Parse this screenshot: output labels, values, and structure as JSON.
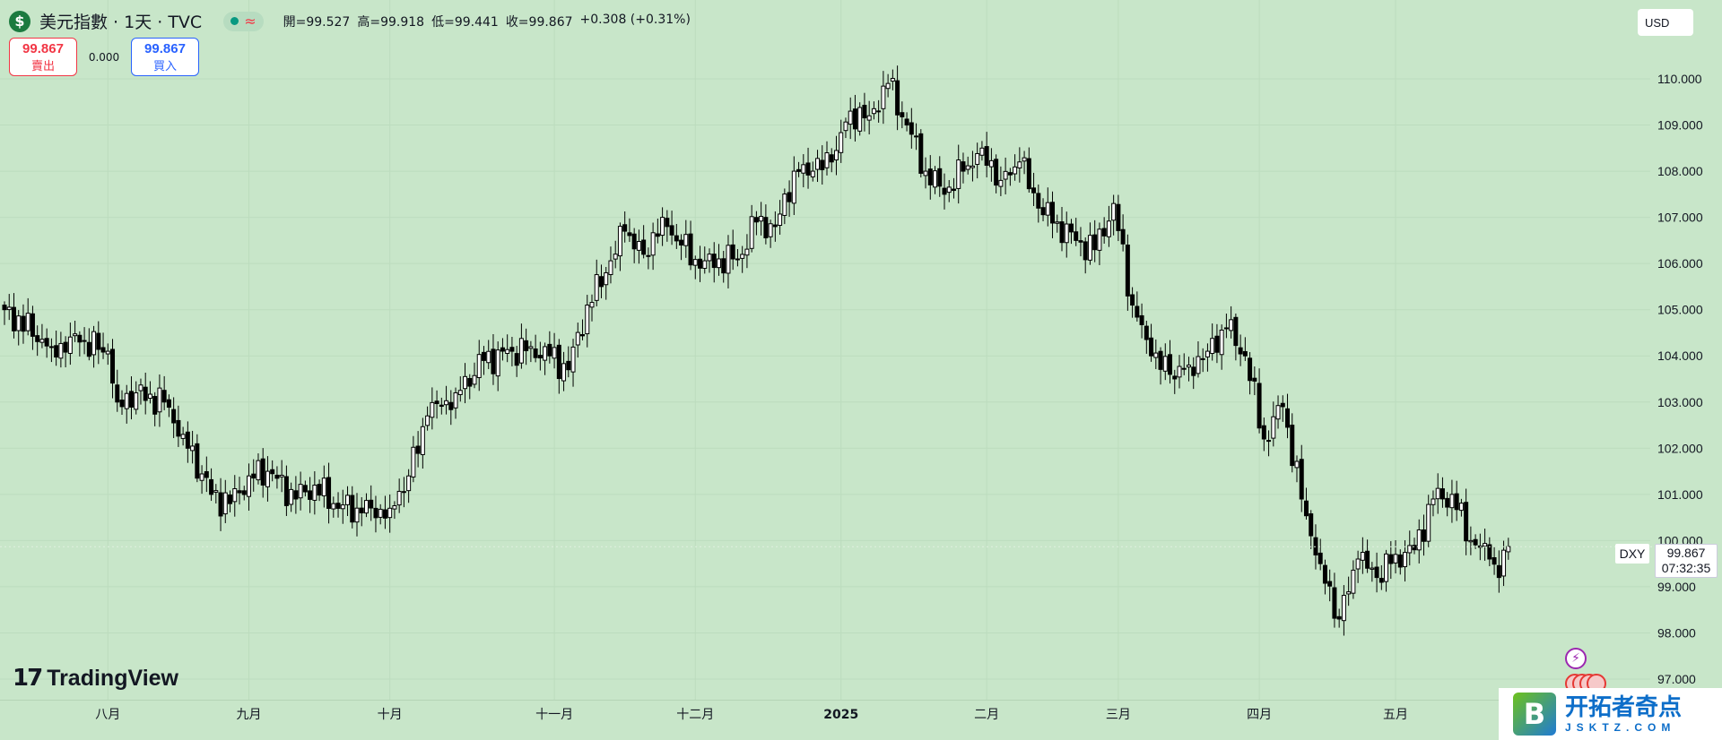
{
  "header": {
    "title": "美元指數 · 1天 · TVC",
    "coin_icon": "dollar-icon",
    "status_approx": "≈",
    "ohlc": [
      {
        "label": "開=",
        "value": "99.527"
      },
      {
        "label": "高=",
        "value": "99.918"
      },
      {
        "label": "低=",
        "value": "99.441"
      },
      {
        "label": "收=",
        "value": "99.867"
      }
    ],
    "change": "+0.308 (+0.31%)"
  },
  "trade": {
    "sell_price": "99.867",
    "sell_label": "賣出",
    "spread": "0.000",
    "buy_price": "99.867",
    "buy_label": "買入"
  },
  "currency": "USD",
  "last_price": {
    "symbol": "DXY",
    "price": "99.867",
    "countdown": "07:32:35"
  },
  "logo": {
    "mark": "17",
    "word": "TradingView"
  },
  "watermark": {
    "logo_letter": "B",
    "title": "开拓者奇点",
    "subtitle": "JSKTZ.COM"
  },
  "colors": {
    "background": "#c8e6c9",
    "candle_up": "#ffffff",
    "candle_down": "#000000",
    "sell": "#f23645",
    "buy": "#2962ff"
  },
  "chart_data": {
    "type": "candlestick",
    "symbol": "DXY",
    "interval": "1天",
    "y_ticks": [
      "97.000",
      "98.000",
      "99.000",
      "100.000",
      "101.000",
      "102.000",
      "103.000",
      "104.000",
      "105.000",
      "106.000",
      "107.000",
      "108.000",
      "109.000",
      "110.000"
    ],
    "ylim": [
      97,
      110.8
    ],
    "x_ticks": [
      {
        "label": "八月",
        "index": 22
      },
      {
        "label": "九月",
        "index": 52
      },
      {
        "label": "十月",
        "index": 82
      },
      {
        "label": "十一月",
        "index": 117
      },
      {
        "label": "十二月",
        "index": 147
      },
      {
        "label": "2025",
        "index": 178,
        "bold": true
      },
      {
        "label": "二月",
        "index": 209
      },
      {
        "label": "三月",
        "index": 237
      },
      {
        "label": "四月",
        "index": 267
      },
      {
        "label": "五月",
        "index": 296
      }
    ],
    "anchor_close": [
      [
        0,
        105.0
      ],
      [
        10,
        104.2
      ],
      [
        16,
        104.3
      ],
      [
        22,
        104.1
      ],
      [
        24,
        103.0
      ],
      [
        28,
        103.2
      ],
      [
        34,
        103.0
      ],
      [
        38,
        102.3
      ],
      [
        44,
        101.0
      ],
      [
        48,
        100.8
      ],
      [
        52,
        101.4
      ],
      [
        56,
        101.5
      ],
      [
        62,
        100.9
      ],
      [
        66,
        101.2
      ],
      [
        70,
        100.8
      ],
      [
        76,
        100.6
      ],
      [
        82,
        100.7
      ],
      [
        86,
        101.4
      ],
      [
        90,
        102.7
      ],
      [
        96,
        103.2
      ],
      [
        102,
        103.9
      ],
      [
        108,
        104.1
      ],
      [
        112,
        104.2
      ],
      [
        116,
        104.0
      ],
      [
        120,
        103.7
      ],
      [
        124,
        105.1
      ],
      [
        128,
        105.8
      ],
      [
        132,
        106.7
      ],
      [
        136,
        106.2
      ],
      [
        140,
        107.0
      ],
      [
        144,
        106.4
      ],
      [
        148,
        105.9
      ],
      [
        152,
        106.1
      ],
      [
        156,
        106.1
      ],
      [
        160,
        106.9
      ],
      [
        164,
        106.8
      ],
      [
        168,
        108.0
      ],
      [
        172,
        108.0
      ],
      [
        176,
        108.2
      ],
      [
        180,
        109.3
      ],
      [
        184,
        109.2
      ],
      [
        188,
        109.9
      ],
      [
        192,
        109.0
      ],
      [
        196,
        108.0
      ],
      [
        200,
        107.5
      ],
      [
        204,
        108.0
      ],
      [
        208,
        108.5
      ],
      [
        212,
        107.8
      ],
      [
        216,
        108.2
      ],
      [
        220,
        107.2
      ],
      [
        224,
        106.9
      ],
      [
        228,
        106.5
      ],
      [
        232,
        106.3
      ],
      [
        236,
        107.3
      ],
      [
        240,
        105.1
      ],
      [
        244,
        104.0
      ],
      [
        248,
        103.6
      ],
      [
        252,
        103.8
      ],
      [
        256,
        104.1
      ],
      [
        260,
        104.6
      ],
      [
        264,
        104.0
      ],
      [
        268,
        102.2
      ],
      [
        272,
        102.9
      ],
      [
        276,
        100.9
      ],
      [
        280,
        99.5
      ],
      [
        284,
        98.3
      ],
      [
        288,
        99.6
      ],
      [
        292,
        99.2
      ],
      [
        296,
        99.7
      ],
      [
        300,
        99.8
      ],
      [
        304,
        100.9
      ],
      [
        308,
        101.0
      ],
      [
        312,
        100.0
      ],
      [
        316,
        99.6
      ],
      [
        318,
        99.2
      ],
      [
        320,
        99.87
      ]
    ]
  }
}
